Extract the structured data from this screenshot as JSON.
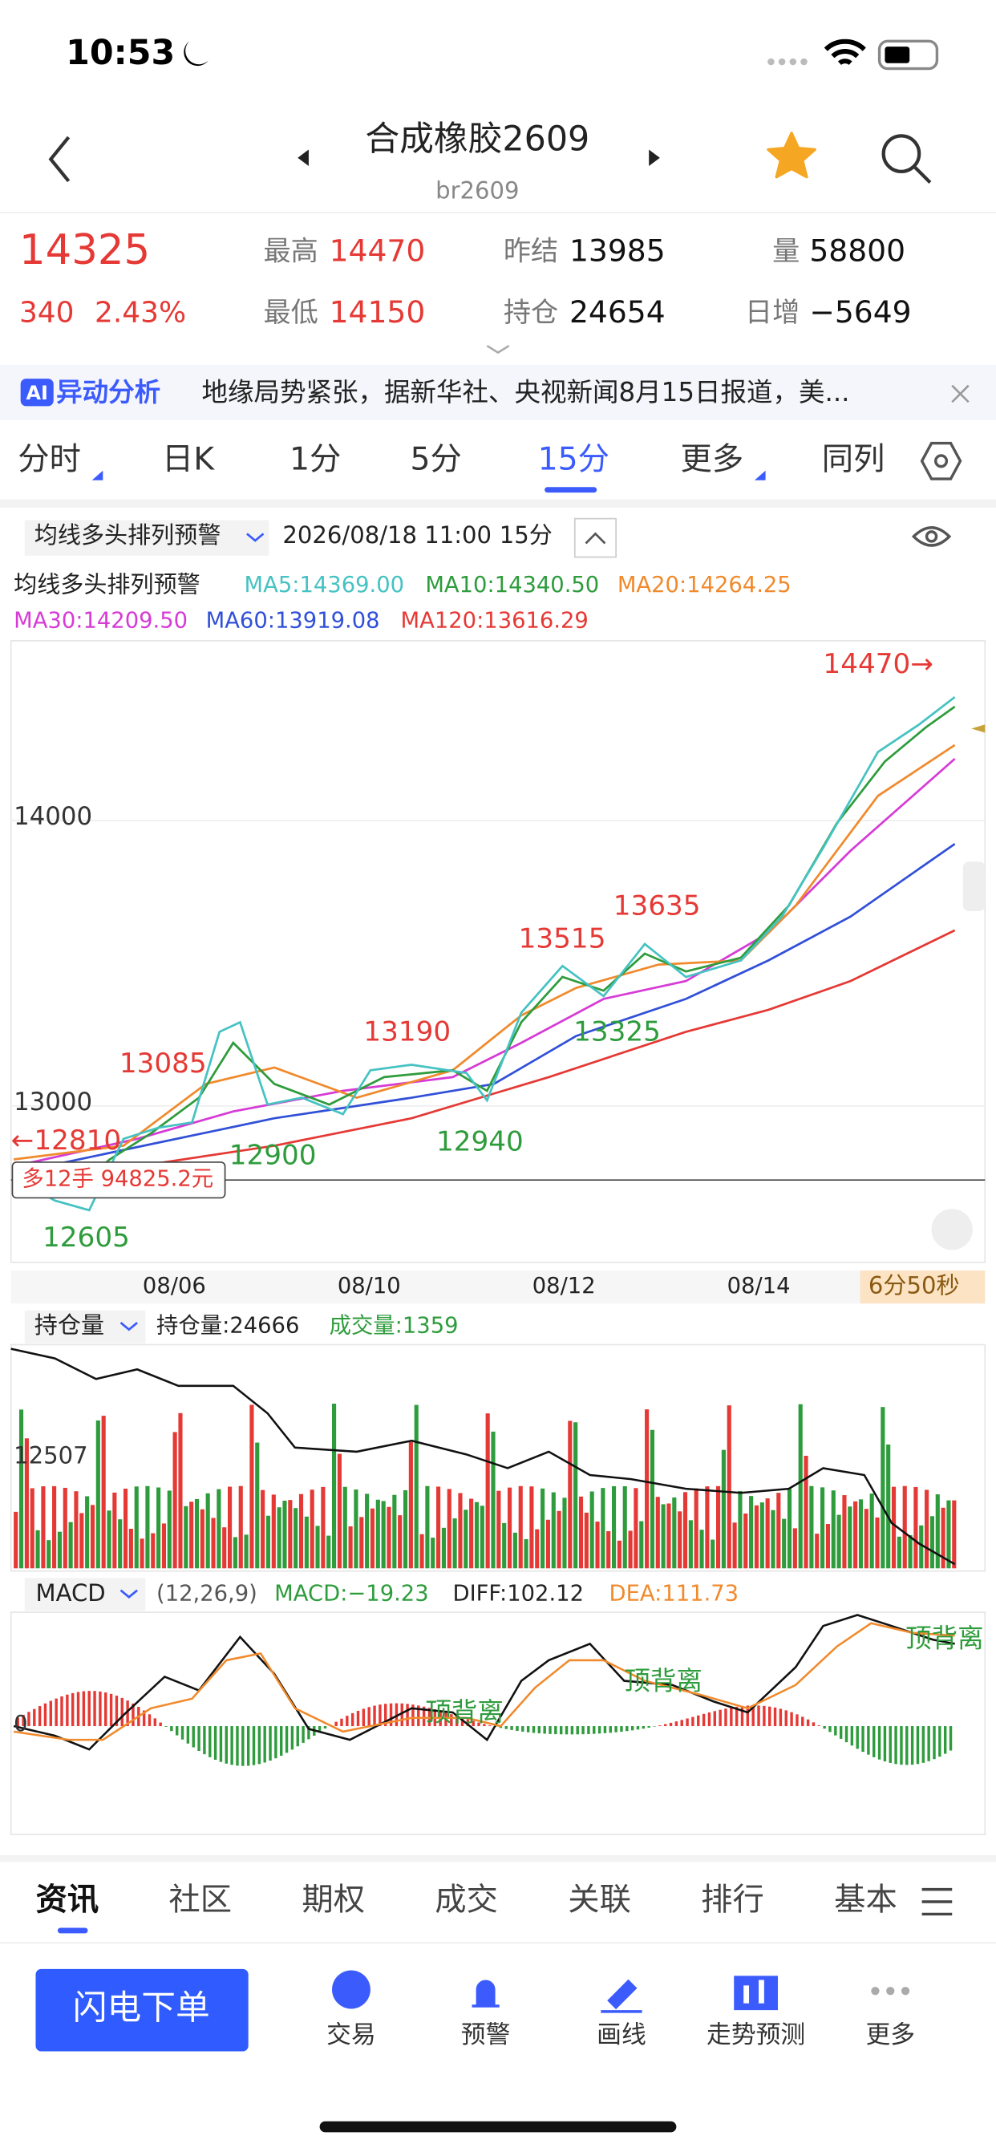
{
  "status": {
    "time": "10:53"
  },
  "header": {
    "title": "合成橡胶2609",
    "code": "br2609"
  },
  "quote": {
    "price": "14325",
    "change": "340",
    "pct": "2.43%",
    "high_label": "最高",
    "high": "14470",
    "low_label": "最低",
    "low": "14150",
    "settle_label": "昨结",
    "settle": "13985",
    "oi_label": "持仓",
    "oi": "24654",
    "vol_label": "量",
    "vol": "58800",
    "daily_label": "日增",
    "daily": "−5649"
  },
  "news": {
    "ai": "AI",
    "tag": "异动分析",
    "text": "地缘局势紧张，据新华社、央视新闻8月15日报道，美..."
  },
  "tabs": [
    "分时",
    "日K",
    "1分",
    "5分",
    "15分",
    "更多",
    "同列"
  ],
  "toolbar": {
    "signal": "均线多头排列预警",
    "datetime": "2026/08/18 11:00",
    "period": "15分"
  },
  "ma": {
    "title": "均线多头排列预警",
    "items": [
      "MA5:14369.00",
      "MA10:14340.50",
      "MA20:14264.25",
      "MA30:14209.50",
      "MA60:13919.08",
      "MA120:13616.29"
    ]
  },
  "chart": {
    "ylabels": [
      "14000",
      "13000"
    ],
    "annotations": [
      "14470→",
      "13085",
      "←12810",
      "12605",
      "12900",
      "13190",
      "12940",
      "13515",
      "13325",
      "13635"
    ],
    "position": "多12手 94825.2元",
    "dates": [
      "08/06",
      "08/10",
      "08/12",
      "08/14"
    ],
    "timer": "6分50秒"
  },
  "volume": {
    "label": "持仓量",
    "oi": "持仓量:24666",
    "vol": "成交量:1359",
    "tick": "12507"
  },
  "macd": {
    "label": "MACD",
    "params": "(12,26,9)",
    "macd": "MACD:−19.23",
    "diff": "DIFF:102.12",
    "dea": "DEA:111.73",
    "zero": "0",
    "annotations": [
      "顶背离",
      "顶背离",
      "顶背离"
    ]
  },
  "bottom_tabs": [
    "资讯",
    "社区",
    "期权",
    "成交",
    "关联",
    "排行",
    "基本"
  ],
  "actions": {
    "order": "闪电下单",
    "items": [
      "交易",
      "预警",
      "画线",
      "走势预测",
      "更多"
    ]
  }
}
